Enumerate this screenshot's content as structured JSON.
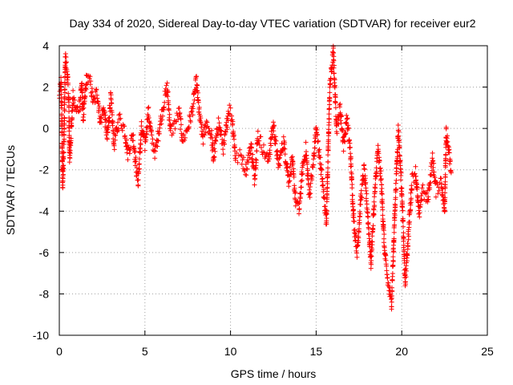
{
  "chart_data": {
    "type": "scatter",
    "title": "Day 334 of 2020, Sidereal Day-to-day VTEC variation (SDTVAR) for receiver eur2",
    "xlabel": "GPS time / hours",
    "ylabel": "SDTVAR / TECUs",
    "xlim": [
      0,
      25
    ],
    "ylim": [
      -10,
      4
    ],
    "xticks": [
      0,
      5,
      10,
      15,
      20,
      25
    ],
    "yticks": [
      -10,
      -8,
      -6,
      -4,
      -2,
      0,
      2,
      4
    ],
    "xtick_labels": [
      "0",
      "5",
      "10",
      "15",
      "20",
      "25"
    ],
    "ytick_labels": [
      "-10",
      "-8",
      "-6",
      "-4",
      "-2",
      "0",
      "2",
      "4"
    ],
    "grid": true,
    "marker": "+",
    "marker_color": "#ff0000",
    "series": [
      {
        "name": "SDTVAR",
        "approximate_trace": [
          [
            0.0,
            1.5
          ],
          [
            0.1,
            2.2
          ],
          [
            0.15,
            0.2
          ],
          [
            0.2,
            -2.8
          ],
          [
            0.3,
            0.5
          ],
          [
            0.35,
            3.5
          ],
          [
            0.45,
            2.8
          ],
          [
            0.55,
            1.5
          ],
          [
            0.6,
            -1.5
          ],
          [
            0.7,
            0.0
          ],
          [
            0.8,
            1.5
          ],
          [
            1.0,
            0.8
          ],
          [
            1.2,
            1.2
          ],
          [
            1.3,
            2.2
          ],
          [
            1.4,
            0.5
          ],
          [
            1.6,
            2.5
          ],
          [
            1.8,
            2.2
          ],
          [
            2.0,
            1.2
          ],
          [
            2.2,
            1.8
          ],
          [
            2.4,
            0.3
          ],
          [
            2.6,
            1.0
          ],
          [
            2.8,
            -0.5
          ],
          [
            3.0,
            1.5
          ],
          [
            3.2,
            -0.8
          ],
          [
            3.5,
            0.5
          ],
          [
            3.8,
            0.0
          ],
          [
            4.0,
            -1.2
          ],
          [
            4.3,
            -0.3
          ],
          [
            4.5,
            -2.0
          ],
          [
            4.6,
            -2.6
          ],
          [
            4.8,
            0.0
          ],
          [
            5.0,
            -0.8
          ],
          [
            5.2,
            0.8
          ],
          [
            5.4,
            -0.5
          ],
          [
            5.6,
            -1.2
          ],
          [
            5.9,
            0.3
          ],
          [
            6.1,
            1.2
          ],
          [
            6.3,
            2.0
          ],
          [
            6.5,
            -0.2
          ],
          [
            6.8,
            0.3
          ],
          [
            7.0,
            0.8
          ],
          [
            7.2,
            -0.6
          ],
          [
            7.5,
            0.0
          ],
          [
            7.8,
            1.0
          ],
          [
            8.0,
            2.3
          ],
          [
            8.2,
            0.5
          ],
          [
            8.4,
            -0.5
          ],
          [
            8.6,
            0.3
          ],
          [
            8.9,
            -0.4
          ],
          [
            9.0,
            -1.5
          ],
          [
            9.3,
            0.3
          ],
          [
            9.6,
            -1.0
          ],
          [
            9.9,
            1.0
          ],
          [
            10.1,
            0.5
          ],
          [
            10.3,
            -1.5
          ],
          [
            10.6,
            -1.3
          ],
          [
            10.9,
            -2.0
          ],
          [
            11.2,
            -0.8
          ],
          [
            11.4,
            -2.4
          ],
          [
            11.6,
            -0.3
          ],
          [
            11.9,
            -1.0
          ],
          [
            12.2,
            -1.6
          ],
          [
            12.5,
            0.2
          ],
          [
            12.8,
            -1.8
          ],
          [
            13.1,
            -0.6
          ],
          [
            13.4,
            -2.5
          ],
          [
            13.6,
            -1.5
          ],
          [
            13.8,
            -3.5
          ],
          [
            14.0,
            -4.0
          ],
          [
            14.2,
            -2.0
          ],
          [
            14.4,
            -1.0
          ],
          [
            14.6,
            -3.2
          ],
          [
            14.8,
            -2.0
          ],
          [
            15.0,
            0.0
          ],
          [
            15.3,
            -2.0
          ],
          [
            15.6,
            -4.5
          ],
          [
            15.8,
            2.0
          ],
          [
            16.0,
            3.7
          ],
          [
            16.2,
            0.0
          ],
          [
            16.4,
            1.0
          ],
          [
            16.6,
            -0.8
          ],
          [
            16.8,
            0.5
          ],
          [
            17.0,
            -1.2
          ],
          [
            17.2,
            -4.5
          ],
          [
            17.4,
            -6.0
          ],
          [
            17.6,
            -3.5
          ],
          [
            17.8,
            -2.0
          ],
          [
            18.0,
            -4.0
          ],
          [
            18.2,
            -6.5
          ],
          [
            18.4,
            -3.5
          ],
          [
            18.6,
            -1.0
          ],
          [
            18.8,
            -2.5
          ],
          [
            19.0,
            -6.0
          ],
          [
            19.2,
            -7.5
          ],
          [
            19.4,
            -8.5
          ],
          [
            19.6,
            -4.0
          ],
          [
            19.8,
            0.0
          ],
          [
            20.0,
            -3.0
          ],
          [
            20.2,
            -7.5
          ],
          [
            20.4,
            -5.0
          ],
          [
            20.6,
            -2.5
          ],
          [
            20.8,
            -2.0
          ],
          [
            21.0,
            -4.2
          ],
          [
            21.2,
            -3.0
          ],
          [
            21.5,
            -3.5
          ],
          [
            21.8,
            -1.5
          ],
          [
            22.0,
            -3.0
          ],
          [
            22.3,
            -2.5
          ],
          [
            22.5,
            -4.0
          ],
          [
            22.6,
            -0.2
          ],
          [
            22.8,
            -1.5
          ],
          [
            22.9,
            -2.3
          ]
        ]
      }
    ]
  }
}
